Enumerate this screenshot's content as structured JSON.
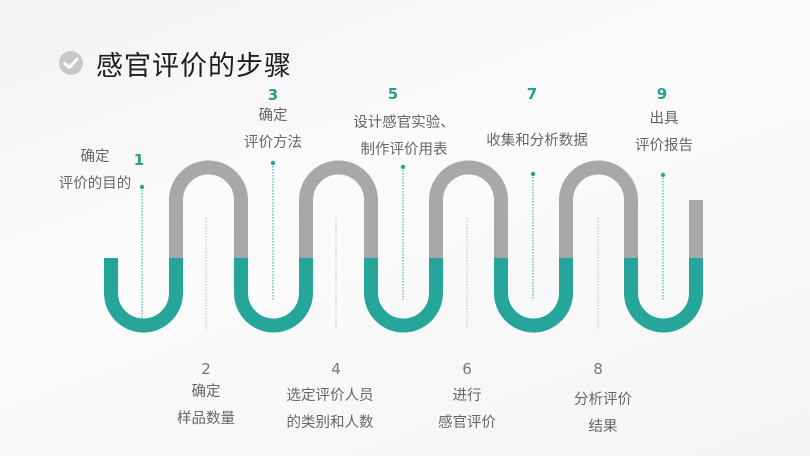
{
  "title": "感官评价的步骤",
  "colors": {
    "teal": "#26a69a",
    "gray": "#a8a8a8",
    "number": "#2a9d8f"
  },
  "steps": [
    {
      "num": "1",
      "lines": [
        "确定",
        "评价的目的"
      ]
    },
    {
      "num": "2",
      "lines": [
        "确定",
        "样品数量"
      ]
    },
    {
      "num": "3",
      "lines": [
        "确定",
        "评价方法"
      ]
    },
    {
      "num": "4",
      "lines": [
        "选定评价人员",
        "的类别和人数"
      ]
    },
    {
      "num": "5",
      "lines": [
        "设计感官实验、",
        "制作评价用表"
      ]
    },
    {
      "num": "6",
      "lines": [
        "进行",
        "感官评价"
      ]
    },
    {
      "num": "7",
      "lines": [
        "收集和分析数据"
      ]
    },
    {
      "num": "8",
      "lines": [
        "分析评价",
        "结果"
      ]
    },
    {
      "num": "9",
      "lines": [
        "出具",
        "评价报告"
      ]
    }
  ]
}
